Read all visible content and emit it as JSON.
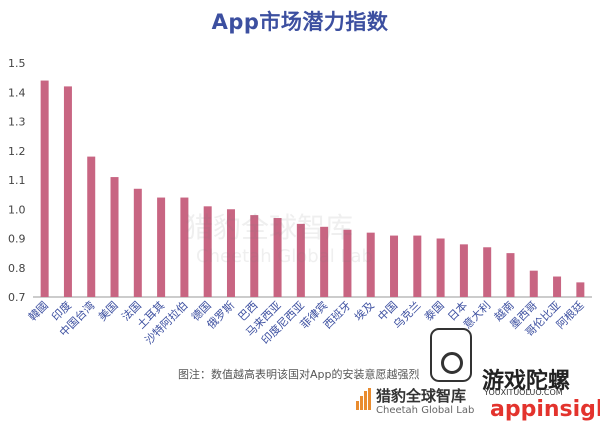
{
  "chart_data": {
    "type": "bar",
    "title": "App市场潜力指数",
    "categories": [
      "韓國",
      "印度",
      "中国台湾",
      "美国",
      "法国",
      "土耳其",
      "沙特阿拉伯",
      "德国",
      "俄罗斯",
      "巴西",
      "马来西亚",
      "印度尼西亚",
      "菲律宾",
      "西班牙",
      "埃及",
      "中国",
      "乌克兰",
      "泰国",
      "日本",
      "意大利",
      "越南",
      "墨西哥",
      "哥伦比亚",
      "阿根廷"
    ],
    "values": [
      1.44,
      1.42,
      1.18,
      1.11,
      1.07,
      1.04,
      1.04,
      1.01,
      1.0,
      0.98,
      0.97,
      0.95,
      0.94,
      0.93,
      0.92,
      0.91,
      0.91,
      0.9,
      0.88,
      0.87,
      0.85,
      0.79,
      0.77,
      0.75
    ],
    "ylim": [
      0.7,
      1.5
    ],
    "yticks": [
      0.7,
      0.8,
      0.9,
      1.0,
      1.1,
      1.2,
      1.3,
      1.4,
      1.5
    ],
    "xlabel": "",
    "ylabel": "",
    "grid": false,
    "bar_color": "#c86582"
  },
  "note": "图注：数值越高表明该国对App的安装意愿越强烈",
  "brand": {
    "name_cn": "猎豹全球智库",
    "name_en": "Cheetah Global Lab"
  },
  "watermark": {
    "site": "游戏陀螺",
    "url": "YOUXITUOLUO.COM",
    "logo": "appinsight",
    "center_cn": "猎豹全球智库",
    "center_en": "Cheetah Global Lab"
  }
}
